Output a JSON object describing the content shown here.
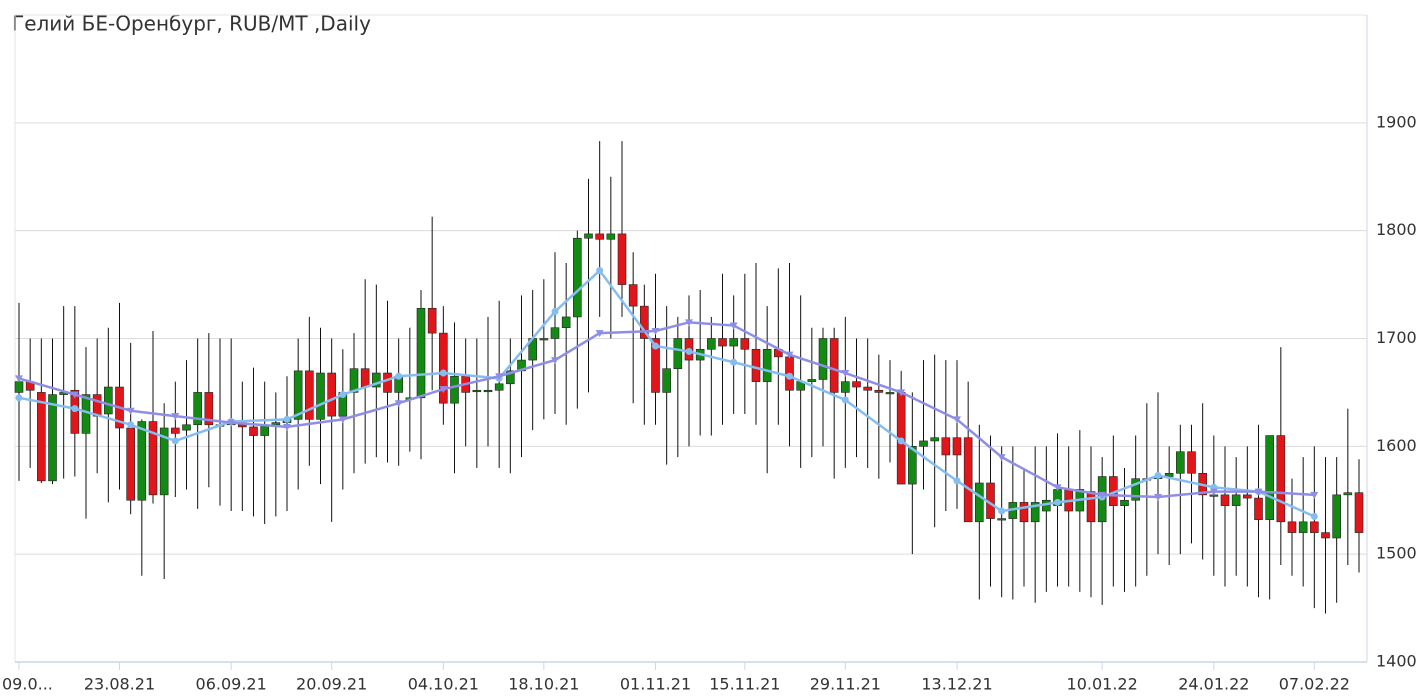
{
  "chart_data": {
    "type": "candlestick",
    "title": "Гелий БЕ-Оренбург, RUB/MT ,Daily",
    "categories": [
      "09.0...",
      null,
      null,
      null,
      null,
      null,
      null,
      null,
      null,
      "23.08.21",
      null,
      null,
      null,
      null,
      null,
      null,
      null,
      null,
      null,
      "06.09.21",
      null,
      null,
      null,
      null,
      null,
      null,
      null,
      null,
      "20.09.21",
      null,
      null,
      null,
      null,
      null,
      null,
      null,
      null,
      null,
      "04.10.21",
      null,
      null,
      null,
      null,
      null,
      null,
      null,
      null,
      "18.10.21",
      null,
      null,
      null,
      null,
      null,
      null,
      null,
      null,
      null,
      "01.11.21",
      null,
      null,
      null,
      null,
      null,
      null,
      null,
      "15.11.21",
      null,
      null,
      null,
      null,
      null,
      null,
      null,
      null,
      "29.11.21",
      null,
      null,
      null,
      null,
      null,
      null,
      null,
      null,
      null,
      "13.12.21",
      null,
      null,
      null,
      null,
      null,
      null,
      null,
      null,
      null,
      null,
      null,
      null,
      "10.01.22",
      null,
      null,
      null,
      null,
      null,
      null,
      null,
      null,
      null,
      "24.01.22",
      null,
      null,
      null,
      null,
      null,
      null,
      null,
      null,
      "07.02.22",
      null,
      null,
      null,
      null
    ],
    "open": [
      1650,
      1660,
      1650,
      1568,
      1648,
      1652,
      1612,
      1648,
      1630,
      1655,
      1617,
      1550,
      1623,
      1555,
      1617,
      1615,
      1620,
      1650,
      1620,
      1620,
      1622,
      1618,
      1610,
      1620,
      1622,
      1625,
      1670,
      1625,
      1668,
      1628,
      1650,
      1672,
      1655,
      1668,
      1650,
      1645,
      1645,
      1728,
      1705,
      1640,
      1665,
      1652,
      1652,
      1652,
      1658,
      1670,
      1680,
      1700,
      1700,
      1710,
      1720,
      1793,
      1797,
      1792,
      1797,
      1750,
      1730,
      1700,
      1650,
      1672,
      1700,
      1680,
      1690,
      1700,
      1693,
      1700,
      1690,
      1660,
      1690,
      1683,
      1652,
      1660,
      1662,
      1700,
      1650,
      1660,
      1655,
      1652,
      1650,
      1650,
      1565,
      1600,
      1605,
      1608,
      1608,
      1608,
      1530,
      1566,
      1533,
      1533,
      1548,
      1530,
      1540,
      1545,
      1560,
      1540,
      1558,
      1530,
      1572,
      1545,
      1550,
      1570,
      1570,
      1572,
      1575,
      1595,
      1575,
      1555,
      1555,
      1545,
      1555,
      1552,
      1532,
      1610,
      1530,
      1520,
      1530,
      1520,
      1515,
      1555,
      1557
    ],
    "high": [
      1733,
      1700,
      1700,
      1700,
      1730,
      1730,
      1692,
      1700,
      1710,
      1733,
      1696,
      1625,
      1707,
      1640,
      1660,
      1680,
      1700,
      1705,
      1700,
      1700,
      1660,
      1673,
      1660,
      1650,
      1665,
      1700,
      1720,
      1710,
      1700,
      1690,
      1705,
      1755,
      1750,
      1735,
      1700,
      1710,
      1745,
      1813,
      1730,
      1715,
      1700,
      1700,
      1720,
      1735,
      1700,
      1740,
      1745,
      1755,
      1780,
      1770,
      1800,
      1848,
      1883,
      1850,
      1883,
      1780,
      1750,
      1760,
      1730,
      1720,
      1740,
      1745,
      1720,
      1760,
      1740,
      1760,
      1770,
      1730,
      1765,
      1770,
      1740,
      1710,
      1710,
      1710,
      1720,
      1700,
      1700,
      1685,
      1680,
      1670,
      1650,
      1680,
      1685,
      1680,
      1680,
      1660,
      1620,
      1610,
      1600,
      1600,
      1580,
      1600,
      1600,
      1612,
      1600,
      1615,
      1600,
      1590,
      1610,
      1580,
      1610,
      1640,
      1650,
      1600,
      1620,
      1620,
      1640,
      1610,
      1600,
      1590,
      1600,
      1620,
      1610,
      1692,
      1570,
      1590,
      1600,
      1590,
      1590,
      1635,
      1588
    ],
    "low": [
      1568,
      1580,
      1566,
      1565,
      1570,
      1572,
      1533,
      1575,
      1548,
      1560,
      1537,
      1480,
      1547,
      1477,
      1553,
      1560,
      1542,
      1562,
      1545,
      1540,
      1540,
      1535,
      1528,
      1535,
      1540,
      1560,
      1582,
      1565,
      1530,
      1560,
      1575,
      1584,
      1590,
      1585,
      1582,
      1595,
      1588,
      1652,
      1620,
      1575,
      1600,
      1580,
      1600,
      1580,
      1575,
      1590,
      1615,
      1625,
      1630,
      1620,
      1635,
      1650,
      1720,
      1700,
      1720,
      1640,
      1620,
      1620,
      1583,
      1590,
      1600,
      1610,
      1610,
      1620,
      1630,
      1630,
      1620,
      1575,
      1620,
      1600,
      1580,
      1590,
      1600,
      1570,
      1580,
      1590,
      1580,
      1570,
      1585,
      1565,
      1500,
      1560,
      1525,
      1540,
      1542,
      1530,
      1458,
      1470,
      1460,
      1458,
      1470,
      1455,
      1465,
      1470,
      1470,
      1465,
      1460,
      1453,
      1470,
      1465,
      1470,
      1480,
      1500,
      1490,
      1500,
      1510,
      1495,
      1480,
      1470,
      1480,
      1470,
      1460,
      1458,
      1490,
      1480,
      1470,
      1450,
      1445,
      1455,
      1490,
      1483
    ],
    "close": [
      1660,
      1652,
      1568,
      1648,
      1650,
      1612,
      1648,
      1628,
      1655,
      1617,
      1550,
      1623,
      1555,
      1617,
      1612,
      1620,
      1650,
      1620,
      1620,
      1622,
      1618,
      1610,
      1620,
      1622,
      1625,
      1670,
      1625,
      1668,
      1628,
      1650,
      1672,
      1655,
      1668,
      1650,
      1665,
      1645,
      1728,
      1705,
      1640,
      1665,
      1650,
      1652,
      1652,
      1658,
      1670,
      1680,
      1700,
      1700,
      1710,
      1720,
      1793,
      1797,
      1792,
      1797,
      1750,
      1730,
      1700,
      1650,
      1672,
      1700,
      1680,
      1690,
      1700,
      1693,
      1700,
      1690,
      1660,
      1690,
      1683,
      1652,
      1660,
      1662,
      1700,
      1650,
      1660,
      1655,
      1652,
      1650,
      1650,
      1565,
      1600,
      1605,
      1608,
      1592,
      1592,
      1530,
      1566,
      1533,
      1533,
      1548,
      1530,
      1548,
      1550,
      1560,
      1540,
      1560,
      1530,
      1572,
      1545,
      1550,
      1570,
      1570,
      1572,
      1575,
      1595,
      1575,
      1555,
      1555,
      1545,
      1555,
      1552,
      1532,
      1610,
      1530,
      1520,
      1530,
      1520,
      1515,
      1555,
      1557,
      1520
    ],
    "up_color": "#138a13",
    "down_color": "#e0161b",
    "series": [
      {
        "color": "#86bdf0",
        "marker": "circle",
        "x": [
          0,
          5,
          10,
          14,
          19,
          24,
          29,
          34,
          38,
          43,
          48,
          52,
          57,
          60,
          64,
          69,
          74,
          79,
          84,
          88,
          93,
          97,
          102,
          107,
          111,
          116
        ],
        "values": [
          1645,
          1635,
          1620,
          1605,
          1623,
          1625,
          1648,
          1665,
          1668,
          1663,
          1725,
          1763,
          1693,
          1688,
          1678,
          1665,
          1643,
          1605,
          1568,
          1540,
          1548,
          1553,
          1573,
          1562,
          1558,
          1535
        ]
      },
      {
        "color": "#8e8ee6",
        "marker": "triangle",
        "x": [
          0,
          5,
          10,
          14,
          19,
          24,
          29,
          34,
          38,
          43,
          48,
          52,
          57,
          60,
          64,
          69,
          74,
          79,
          84,
          88,
          93,
          97,
          102,
          107,
          111,
          116
        ],
        "values": [
          1663,
          1648,
          1633,
          1628,
          1622,
          1618,
          1625,
          1640,
          1653,
          1665,
          1680,
          1705,
          1707,
          1715,
          1712,
          1685,
          1668,
          1650,
          1625,
          1590,
          1562,
          1555,
          1553,
          1558,
          1558,
          1555
        ]
      }
    ],
    "ylim": [
      1400,
      2000
    ],
    "yticks": [
      1400,
      1500,
      1600,
      1700,
      1800,
      1900
    ],
    "y_axis_side": "right",
    "grid": true
  }
}
